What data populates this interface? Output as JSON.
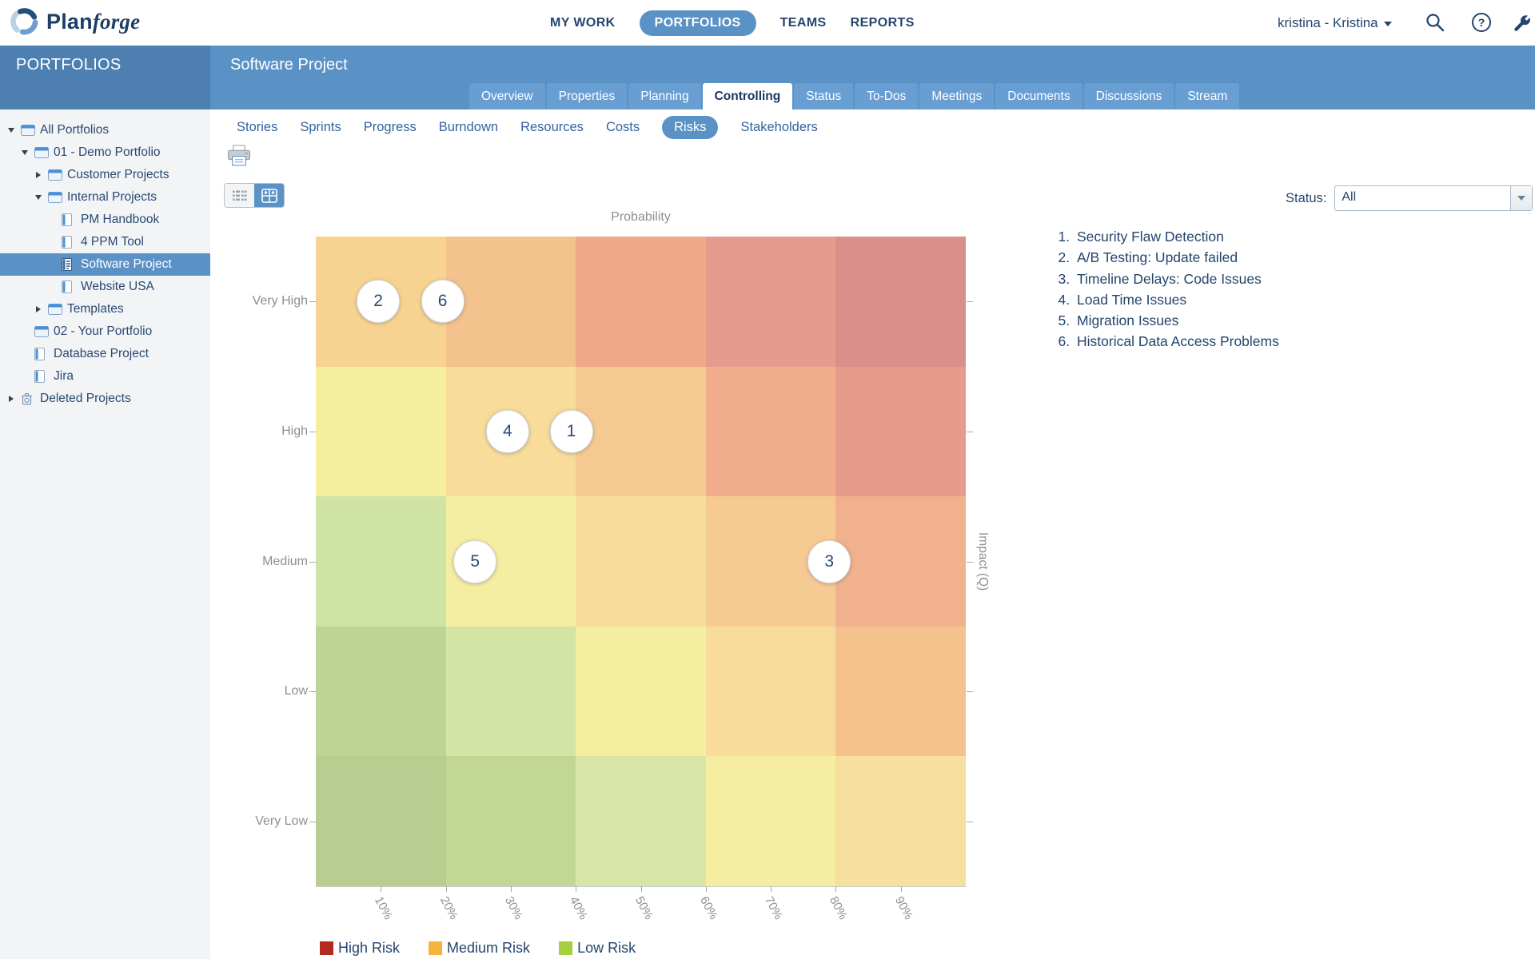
{
  "top_nav": {
    "logo": {
      "icon": "planforge-swirl-icon",
      "text_bold": "Plan",
      "text_italic": "forge"
    },
    "items": [
      {
        "label": "MY WORK",
        "active": false
      },
      {
        "label": "PORTFOLIOS",
        "active": true
      },
      {
        "label": "TEAMS",
        "active": false
      },
      {
        "label": "REPORTS",
        "active": false
      }
    ],
    "user_menu": "kristina - Kristina",
    "icons": [
      "search-icon",
      "help-icon",
      "admin-tools-icon"
    ]
  },
  "sidebar": {
    "header": "PORTFOLIOS",
    "tree": [
      {
        "label": "All Portfolios",
        "level": 0,
        "icon": "folder",
        "arrow": "expanded",
        "selected": false
      },
      {
        "label": "01 - Demo Portfolio",
        "level": 1,
        "icon": "folder",
        "arrow": "expanded",
        "selected": false
      },
      {
        "label": "Customer Projects",
        "level": 2,
        "icon": "folder",
        "arrow": "collapsed",
        "selected": false
      },
      {
        "label": "Internal Projects",
        "level": 2,
        "icon": "folder",
        "arrow": "expanded",
        "selected": false
      },
      {
        "label": "PM Handbook",
        "level": 3,
        "icon": "project",
        "arrow": "none",
        "selected": false
      },
      {
        "label": "4 PPM Tool",
        "level": 3,
        "icon": "project",
        "arrow": "none",
        "selected": false
      },
      {
        "label": "Software Project",
        "level": 3,
        "icon": "project-active",
        "arrow": "none",
        "selected": true
      },
      {
        "label": "Website USA",
        "level": 3,
        "icon": "project",
        "arrow": "none",
        "selected": false
      },
      {
        "label": "Templates",
        "level": 2,
        "icon": "folder",
        "arrow": "collapsed",
        "selected": false
      },
      {
        "label": "02 - Your Portfolio",
        "level": 1,
        "icon": "folder",
        "arrow": "none",
        "selected": false
      },
      {
        "label": "Database Project",
        "level": 1,
        "icon": "project",
        "arrow": "none",
        "selected": false
      },
      {
        "label": "Jira",
        "level": 1,
        "icon": "project",
        "arrow": "none",
        "selected": false
      },
      {
        "label": "Deleted Projects",
        "level": 0,
        "icon": "trash",
        "arrow": "collapsed",
        "selected": false
      }
    ]
  },
  "header": {
    "title": "Software Project"
  },
  "tabs": [
    {
      "label": "Overview",
      "active": false
    },
    {
      "label": "Properties",
      "active": false
    },
    {
      "label": "Planning",
      "active": false
    },
    {
      "label": "Controlling",
      "active": true
    },
    {
      "label": "Status",
      "active": false
    },
    {
      "label": "To-Dos",
      "active": false
    },
    {
      "label": "Meetings",
      "active": false
    },
    {
      "label": "Documents",
      "active": false
    },
    {
      "label": "Discussions",
      "active": false
    },
    {
      "label": "Stream",
      "active": false
    }
  ],
  "subnav": [
    {
      "label": "Stories",
      "active": false
    },
    {
      "label": "Sprints",
      "active": false
    },
    {
      "label": "Progress",
      "active": false
    },
    {
      "label": "Burndown",
      "active": false
    },
    {
      "label": "Resources",
      "active": false
    },
    {
      "label": "Costs",
      "active": false
    },
    {
      "label": "Risks",
      "active": true
    },
    {
      "label": "Stakeholders",
      "active": false
    }
  ],
  "toolbar": {
    "view_toggle": [
      "list-view-icon",
      "matrix-view-icon"
    ],
    "active_view": "matrix"
  },
  "filter": {
    "label": "Status:",
    "value": "All"
  },
  "risk_list": [
    "Security Flaw Detection",
    "A/B Testing: Update failed",
    "Timeline Delays: Code Issues",
    "Load Time Issues",
    "Migration Issues",
    "Historical Data Access Problems"
  ],
  "chart_data": {
    "type": "heatmap",
    "title": "Probability",
    "xlabel": "Probability",
    "ylabel": "Impact (Q)",
    "x_ticks": [
      "10%",
      "20%",
      "30%",
      "40%",
      "50%",
      "60%",
      "70%",
      "80%",
      "90%"
    ],
    "x_range_pct": [
      0,
      100
    ],
    "y_categories": [
      "Very High",
      "High",
      "Medium",
      "Low",
      "Very Low"
    ],
    "grid": "5x5 colored risk cells, green low-left to red high-right",
    "cell_colors": [
      [
        "#f7d391",
        "#f4c28d",
        "#efa987",
        "#e59b8e",
        "#d9908b"
      ],
      [
        "#f5ee9f",
        "#f7dc9a",
        "#f5c992",
        "#f0ae8d",
        "#e69b8d"
      ],
      [
        "#cfe3a5",
        "#f5eda1",
        "#f7dd9c",
        "#f6ca93",
        "#f0b18c"
      ],
      [
        "#bed494",
        "#d3e4a4",
        "#f6ee9f",
        "#f7dc9c",
        "#f5c28e"
      ],
      [
        "#b9cd90",
        "#c3d795",
        "#d7e6a7",
        "#f5ed9f",
        "#f7dfa0"
      ]
    ],
    "points": [
      {
        "n": 1,
        "risk": "Security Flaw Detection",
        "probability": "40%",
        "impact": "High",
        "x_pct": 39.3,
        "y_pct": 30
      },
      {
        "n": 2,
        "risk": "A/B Testing: Update failed",
        "probability": "10%",
        "impact": "Very High",
        "x_pct": 9.6,
        "y_pct": 10
      },
      {
        "n": 3,
        "risk": "Timeline Delays: Code Issues",
        "probability": "80%",
        "impact": "Medium",
        "x_pct": 79.0,
        "y_pct": 50
      },
      {
        "n": 4,
        "risk": "Load Time Issues",
        "probability": "30%",
        "impact": "High",
        "x_pct": 29.5,
        "y_pct": 30
      },
      {
        "n": 5,
        "risk": "Migration Issues",
        "probability": "25%",
        "impact": "Medium",
        "x_pct": 24.5,
        "y_pct": 50
      },
      {
        "n": 6,
        "risk": "Historical Data Access Problems",
        "probability": "20%",
        "impact": "Very High",
        "x_pct": 19.5,
        "y_pct": 10
      }
    ],
    "legend": [
      {
        "label": "High Risk",
        "color": "#b22a20"
      },
      {
        "label": "Medium Risk",
        "color": "#f3b33d"
      },
      {
        "label": "Low Risk",
        "color": "#a5cf3d"
      }
    ],
    "legend_position": "bottom-left"
  },
  "colors": {
    "band_blue": "#5b92c6",
    "sidebar_band_blue": "#4d80b1",
    "tab_inactive_blue": "#699ed3",
    "navy_text": "#24456e",
    "axis_gray": "#8f8f8f",
    "sidebar_bg": "#f3f4f6"
  }
}
